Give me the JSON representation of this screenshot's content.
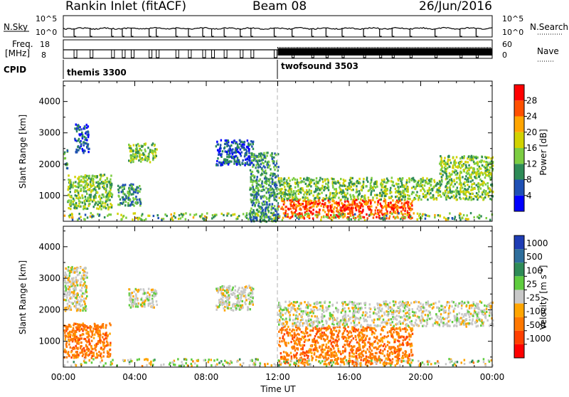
{
  "header": {
    "station": "Rankin Inlet (fitACF)",
    "beam": "Beam 08",
    "date": "26/Jun/2016"
  },
  "top_panels": {
    "nsky_label": "N.Sky",
    "nsky_ticks": [
      "10^5",
      "10^0"
    ],
    "nsearch_label": "N.Search",
    "nsearch_ticks": [
      "10^5",
      "10^0"
    ],
    "freq_label": "Freq.",
    "freq_unit": "[MHz]",
    "freq_ticks": [
      "18",
      "8"
    ],
    "nave_label": "Nave",
    "nave_ticks": [
      "60",
      "0"
    ],
    "cpid_label": "CPID",
    "cpid_segments": [
      {
        "name": "themis 3300",
        "start_hour": 0
      },
      {
        "name": "twofsound 3503",
        "start_hour": 12
      }
    ]
  },
  "chart_data": [
    {
      "type": "heatmap",
      "name": "power-panel",
      "ylabel": "Slant Range [km]",
      "xlabel": "",
      "x_ticks": [
        "00:00",
        "04:00",
        "08:00",
        "12:00",
        "16:00",
        "20:00",
        "00:00"
      ],
      "y_ticks": [
        1000,
        2000,
        3000,
        4000
      ],
      "ylim": [
        180,
        4650
      ],
      "xlim_hours": [
        0,
        24
      ],
      "colorbar_label": "Power [dB]",
      "colorbar_ticks": [
        "4",
        "8",
        "12",
        "16",
        "20",
        "24",
        "28"
      ],
      "colorbar_colors": [
        "#0000ff",
        "#1f50b4",
        "#2e8b57",
        "#7ccd42",
        "#d2d200",
        "#ffa500",
        "#ff5000",
        "#ff0000"
      ],
      "regions": [
        {
          "t0": 0.0,
          "t1": 0.2,
          "r0": 1900,
          "r1": 2500,
          "level": 2
        },
        {
          "t0": 0.2,
          "t1": 2.7,
          "r0": 600,
          "r1": 1700,
          "level": 3
        },
        {
          "t0": 0.6,
          "t1": 1.4,
          "r0": 2400,
          "r1": 3300,
          "level": 1
        },
        {
          "t0": 3.0,
          "t1": 4.3,
          "r0": 700,
          "r1": 1400,
          "level": 2
        },
        {
          "t0": 3.6,
          "t1": 5.2,
          "r0": 2100,
          "r1": 2700,
          "level": 3
        },
        {
          "t0": 8.5,
          "t1": 10.6,
          "r0": 2000,
          "r1": 2800,
          "level": 1
        },
        {
          "t0": 10.4,
          "t1": 12.0,
          "r0": 200,
          "r1": 2400,
          "level": 2
        },
        {
          "t0": 12.0,
          "t1": 19.5,
          "r0": 300,
          "r1": 900,
          "level": 6
        },
        {
          "t0": 12.0,
          "t1": 24.0,
          "r0": 900,
          "r1": 1600,
          "level": 3
        },
        {
          "t0": 21.0,
          "t1": 24.0,
          "r0": 1600,
          "r1": 2300,
          "level": 3
        }
      ]
    },
    {
      "type": "heatmap",
      "name": "velocity-panel",
      "ylabel": "Slant Range [km]",
      "xlabel": "Time UT",
      "x_ticks": [
        "00:00",
        "04:00",
        "08:00",
        "12:00",
        "16:00",
        "20:00",
        "00:00"
      ],
      "y_ticks": [
        1000,
        2000,
        3000,
        4000
      ],
      "ylim": [
        180,
        4650
      ],
      "xlim_hours": [
        0,
        24
      ],
      "colorbar_label": "Velocity [m s^-1]",
      "colorbar_ticks": [
        "1000",
        "500",
        "100",
        "25",
        "-25",
        "-100",
        "-500",
        "-1000"
      ],
      "colorbar_colors": [
        "#1e3cb4",
        "#2e6e9c",
        "#2e8b57",
        "#5fcc3f",
        "#c8c8c8",
        "#ffa500",
        "#ff7800",
        "#ff4000",
        "#ff0000"
      ],
      "regions": [
        {
          "t0": 0.0,
          "t1": 2.6,
          "r0": 500,
          "r1": 1600,
          "level": 6
        },
        {
          "t0": 0.0,
          "t1": 1.3,
          "r0": 2000,
          "r1": 3400,
          "level": 4
        },
        {
          "t0": 3.6,
          "t1": 5.2,
          "r0": 2100,
          "r1": 2700,
          "level": 4
        },
        {
          "t0": 8.5,
          "t1": 10.6,
          "r0": 2000,
          "r1": 2800,
          "level": 4
        },
        {
          "t0": 12.0,
          "t1": 19.5,
          "r0": 300,
          "r1": 1500,
          "level": 6
        },
        {
          "t0": 12.0,
          "t1": 24.0,
          "r0": 1500,
          "r1": 2300,
          "level": 4
        }
      ]
    }
  ]
}
